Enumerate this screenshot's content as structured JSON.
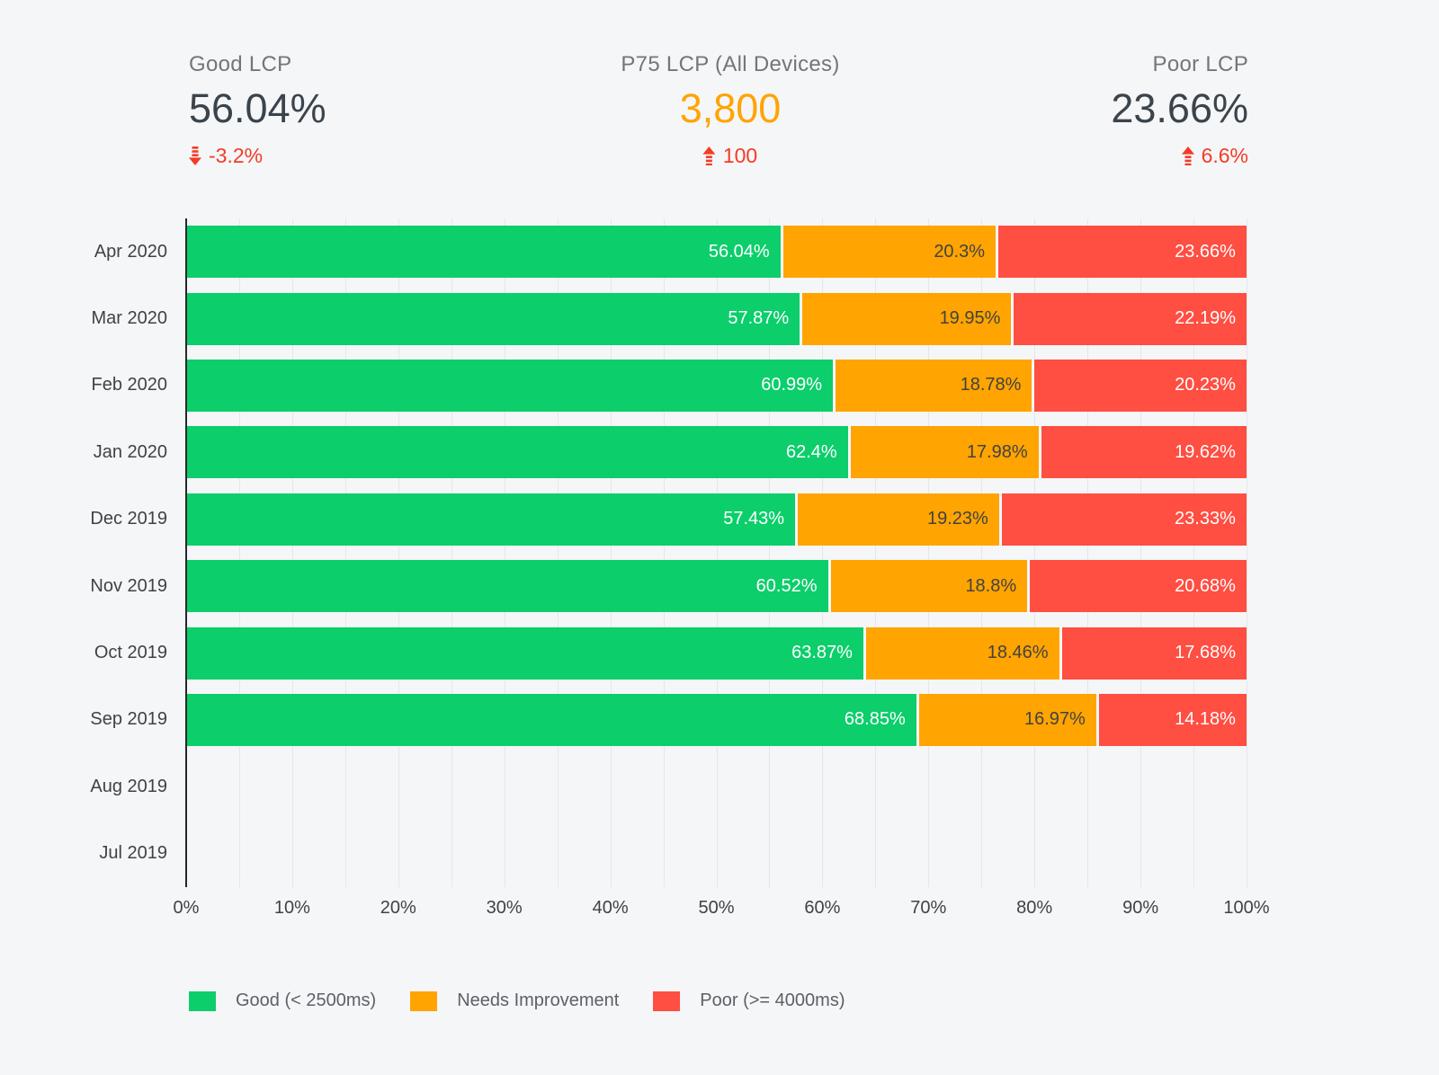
{
  "colors": {
    "good": "#0cce6b",
    "needs_improvement": "#ffa400",
    "poor": "#ff4e42",
    "delta_red": "#f43b26",
    "dark_value": "#3b444c",
    "background": "#f5f6f8"
  },
  "scorecards": [
    {
      "label": "Good LCP",
      "value": "56.04%",
      "delta": "-3.2%",
      "trend": "down",
      "value_color": "#3b444c"
    },
    {
      "label": "P75 LCP (All Devices)",
      "value": "3,800",
      "delta": "100",
      "trend": "up",
      "value_color": "#ffa400"
    },
    {
      "label": "Poor LCP",
      "value": "23.66%",
      "delta": "6.6%",
      "trend": "up",
      "value_color": "#3b444c"
    }
  ],
  "chart_data": {
    "type": "bar",
    "orientation": "horizontal",
    "stacked": true,
    "grid": true,
    "gridline_step_pct": 5,
    "xlim": [
      0,
      100
    ],
    "x_ticks": [
      "0%",
      "10%",
      "20%",
      "30%",
      "40%",
      "50%",
      "60%",
      "70%",
      "80%",
      "90%",
      "100%"
    ],
    "categories": [
      "Apr 2020",
      "Mar 2020",
      "Feb 2020",
      "Jan 2020",
      "Dec 2019",
      "Nov 2019",
      "Oct 2019",
      "Sep 2019",
      "Aug 2019",
      "Jul 2019"
    ],
    "series": [
      {
        "key": "good",
        "name": "Good (< 2500ms)",
        "color": "#0cce6b",
        "label_color": "#ffffff",
        "values": [
          56.04,
          57.87,
          60.99,
          62.4,
          57.43,
          60.52,
          63.87,
          68.85,
          null,
          null
        ],
        "labels": [
          "56.04%",
          "57.87%",
          "60.99%",
          "62.4%",
          "57.43%",
          "60.52%",
          "63.87%",
          "68.85%",
          null,
          null
        ]
      },
      {
        "key": "needs-improvement",
        "name": "Needs Improvement",
        "color": "#ffa400",
        "label_color": "#424242",
        "values": [
          20.3,
          19.95,
          18.78,
          17.98,
          19.23,
          18.8,
          18.46,
          16.97,
          null,
          null
        ],
        "labels": [
          "20.3%",
          "19.95%",
          "18.78%",
          "17.98%",
          "19.23%",
          "18.8%",
          "18.46%",
          "16.97%",
          null,
          null
        ]
      },
      {
        "key": "poor",
        "name": "Poor (>= 4000ms)",
        "color": "#ff4e42",
        "label_color": "#ffffff",
        "values": [
          23.66,
          22.19,
          20.23,
          19.62,
          23.33,
          20.68,
          17.68,
          14.18,
          null,
          null
        ],
        "labels": [
          "23.66%",
          "22.19%",
          "20.23%",
          "19.62%",
          "23.33%",
          "20.68%",
          "17.68%",
          "14.18%",
          null,
          null
        ]
      }
    ],
    "legend_position": "bottom"
  },
  "legend": [
    {
      "label": "Good (< 2500ms)",
      "color": "#0cce6b"
    },
    {
      "label": "Needs Improvement",
      "color": "#ffa400"
    },
    {
      "label": "Poor (>= 4000ms)",
      "color": "#ff4e42"
    }
  ]
}
